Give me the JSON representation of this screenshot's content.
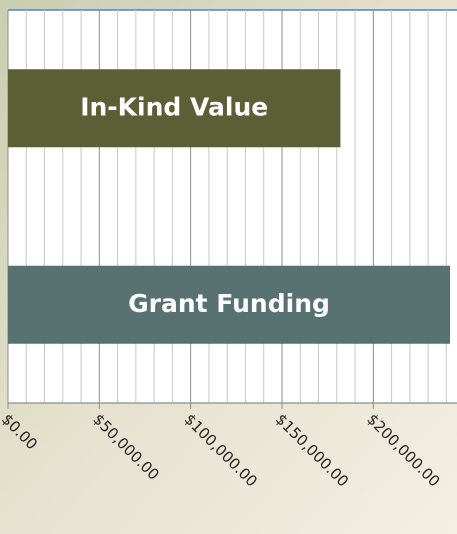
{
  "chart_data": {
    "type": "hbar",
    "categories": [
      "In-Kind Value",
      "Grant Funding"
    ],
    "values": [
      182000,
      242000
    ],
    "colors": [
      "#5c5e36",
      "#577271"
    ],
    "xlim": [
      0,
      245000
    ],
    "xticks": [
      {
        "value": 0,
        "label": "$0.00"
      },
      {
        "value": 50000,
        "label": "$50,000.00"
      },
      {
        "value": 100000,
        "label": "$100,000.00"
      },
      {
        "value": 150000,
        "label": "$150,000.00"
      },
      {
        "value": 200000,
        "label": "$200,000.00"
      }
    ],
    "minor_xticks": [
      10000,
      20000,
      30000,
      40000,
      60000,
      70000,
      80000,
      90000,
      110000,
      120000,
      130000,
      140000,
      160000,
      170000,
      180000,
      190000,
      210000,
      220000,
      230000,
      240000
    ],
    "grid": true
  }
}
